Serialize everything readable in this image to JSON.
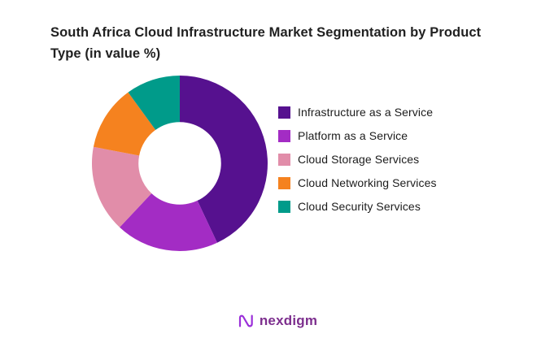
{
  "title": "South Africa Cloud Infrastructure Market Segmentation by Product Type (in value %)",
  "chart_data": {
    "type": "pie",
    "subtype": "donut",
    "title": "South Africa Cloud Infrastructure Market Segmentation by Product Type (in value %)",
    "unit": "value %",
    "legend_position": "right",
    "donut_hole_ratio": 0.47,
    "start_angle_deg": 0,
    "direction": "clockwise",
    "segments": [
      {
        "label": "Infrastructure as a Service",
        "value": 43,
        "color": "#56118F"
      },
      {
        "label": "Platform as a Service",
        "value": 19,
        "color": "#A32CC4"
      },
      {
        "label": "Cloud Storage Services",
        "value": 16,
        "color": "#E18DA9"
      },
      {
        "label": "Cloud Networking Services",
        "value": 12,
        "color": "#F5821F"
      },
      {
        "label": "Cloud Security Services",
        "value": 10,
        "color": "#009B8A"
      }
    ]
  },
  "logo": {
    "text": "nexdigm",
    "brand_color": "#7d2f8e",
    "icon_color": "#9b30d9"
  }
}
